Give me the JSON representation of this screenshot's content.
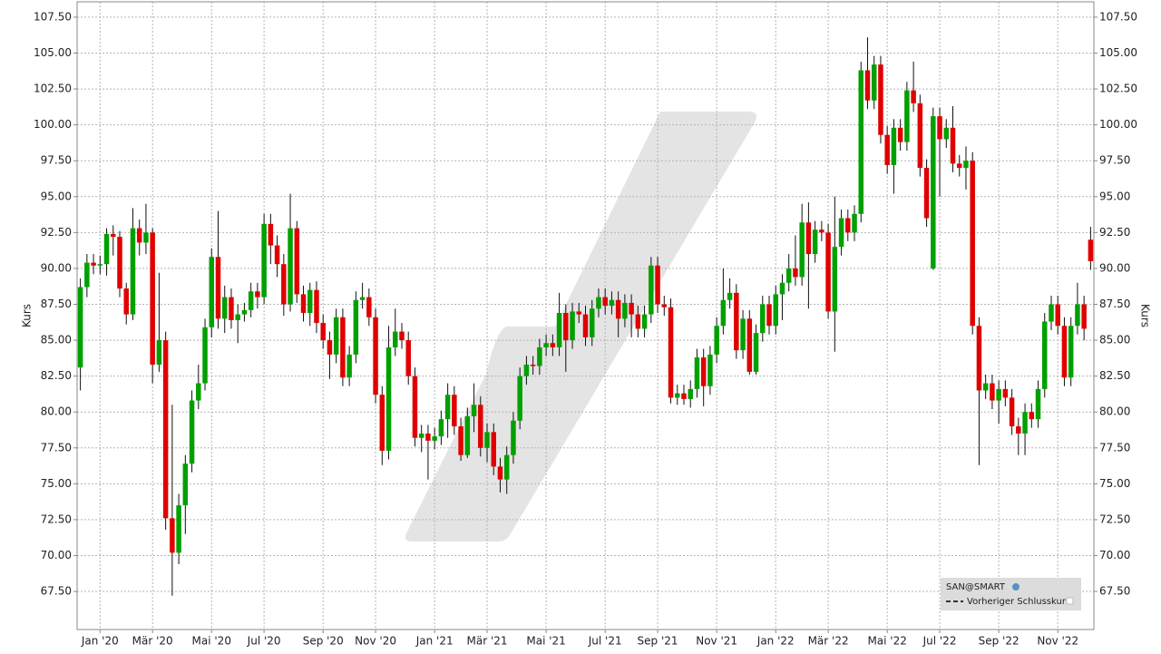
{
  "chart_data": {
    "type": "candlestick",
    "y_label": "Kurs",
    "categories": [
      null,
      null,
      null,
      "Jan '20",
      null,
      null,
      null,
      null,
      null,
      null,
      null,
      "Mär '20",
      null,
      null,
      null,
      null,
      null,
      null,
      null,
      null,
      "Mai '20",
      null,
      null,
      null,
      null,
      null,
      null,
      null,
      "Jul '20",
      null,
      null,
      null,
      null,
      null,
      null,
      null,
      null,
      "Sep '20",
      null,
      null,
      null,
      null,
      null,
      null,
      null,
      "Nov '20",
      null,
      null,
      null,
      null,
      null,
      null,
      null,
      null,
      "Jan '21",
      null,
      null,
      null,
      null,
      null,
      null,
      null,
      "Mär '21",
      null,
      null,
      null,
      null,
      null,
      null,
      null,
      null,
      "Mai '21",
      null,
      null,
      null,
      null,
      null,
      null,
      null,
      null,
      "Jul '21",
      null,
      null,
      null,
      null,
      null,
      null,
      null,
      "Sep '21",
      null,
      null,
      null,
      null,
      null,
      null,
      null,
      null,
      "Nov '21",
      null,
      null,
      null,
      null,
      null,
      null,
      null,
      null,
      "Jan '22",
      null,
      null,
      null,
      null,
      null,
      null,
      null,
      "Mär '22",
      null,
      null,
      null,
      null,
      null,
      null,
      null,
      null,
      "Mai '22",
      null,
      null,
      null,
      null,
      null,
      null,
      null,
      "Jul '22",
      null,
      null,
      null,
      null,
      null,
      null,
      null,
      null,
      "Sep '22",
      null,
      null,
      null,
      null,
      null,
      null,
      null,
      null,
      "Nov '22",
      null,
      null,
      null,
      null,
      null
    ],
    "series": [
      {
        "name": "SAN@SMART",
        "up_color": "#00a000",
        "down_color": "#e00000",
        "open": [
          83.1,
          88.7,
          90.4,
          90.2,
          90.3,
          92.4,
          92.2,
          88.6,
          86.8,
          92.8,
          91.8,
          92.5,
          83.3,
          85.0,
          72.6,
          70.2,
          73.5,
          76.4,
          80.8,
          82.0,
          85.9,
          90.8,
          86.5,
          88.0,
          86.4,
          86.8,
          87.1,
          88.4,
          88.0,
          93.1,
          91.6,
          90.3,
          87.5,
          92.8,
          88.2,
          86.9,
          88.5,
          86.2,
          85.0,
          84.0,
          86.6,
          82.4,
          84.0,
          87.8,
          88.0,
          86.6,
          81.2,
          77.3,
          84.5,
          85.6,
          85.0,
          82.5,
          78.2,
          78.5,
          78.0,
          78.3,
          79.5,
          81.2,
          79.0,
          77.0,
          79.7,
          80.5,
          77.5,
          78.6,
          76.2,
          75.3,
          77.0,
          79.4,
          82.5,
          83.3,
          83.2,
          84.5,
          84.8,
          84.5,
          86.9,
          85.0,
          87.0,
          86.8,
          85.2,
          87.2,
          88.0,
          87.4,
          87.8,
          86.5,
          87.6,
          86.8,
          85.8,
          86.8,
          90.2,
          87.5,
          87.3,
          81.0,
          81.3,
          80.9,
          81.6,
          83.8,
          81.8,
          84.0,
          86.0,
          87.8,
          88.3,
          84.3,
          86.5,
          82.8,
          85.5,
          87.5,
          86.0,
          88.2,
          89.0,
          90.0,
          89.4,
          93.2,
          91.0,
          92.7,
          92.5,
          87.0,
          91.5,
          93.5,
          92.5,
          93.8,
          103.8,
          101.7,
          104.2,
          99.3,
          97.2,
          99.8,
          98.8,
          102.4,
          101.5,
          97.0,
          90.0,
          100.6,
          99.0,
          99.8,
          97.3,
          97.0,
          97.5,
          86.0,
          81.5,
          82.0,
          80.8,
          81.6,
          81.0,
          79.0,
          78.5,
          80.0,
          79.5,
          81.6,
          86.3,
          87.5,
          86.0,
          82.4,
          86.0,
          87.5,
          92.0
        ],
        "high": [
          89.3,
          91.0,
          91.0,
          90.9,
          92.8,
          93.0,
          92.6,
          89.0,
          94.2,
          93.4,
          94.5,
          92.8,
          89.7,
          85.6,
          80.5,
          74.3,
          77.0,
          81.5,
          83.3,
          86.5,
          91.4,
          94.0,
          88.8,
          88.6,
          87.5,
          87.6,
          89.0,
          89.0,
          93.8,
          93.8,
          92.3,
          91.0,
          95.2,
          93.3,
          88.8,
          89.0,
          89.1,
          86.8,
          85.6,
          87.2,
          87.2,
          84.6,
          88.4,
          89.0,
          88.6,
          87.2,
          81.8,
          86.0,
          87.2,
          86.2,
          85.6,
          83.1,
          79.1,
          79.1,
          78.9,
          80.1,
          82.0,
          81.8,
          79.6,
          80.3,
          82.0,
          81.1,
          79.2,
          79.2,
          76.8,
          77.6,
          80.0,
          83.1,
          83.9,
          83.9,
          85.1,
          85.4,
          85.4,
          88.3,
          87.5,
          87.6,
          87.6,
          87.4,
          87.8,
          88.6,
          88.6,
          88.4,
          88.4,
          88.2,
          88.2,
          87.4,
          87.4,
          90.8,
          90.8,
          88.1,
          87.9,
          81.9,
          81.9,
          82.2,
          84.4,
          84.4,
          84.6,
          86.6,
          90.0,
          89.3,
          88.9,
          87.1,
          87.1,
          86.1,
          88.1,
          88.1,
          88.8,
          89.6,
          91.0,
          92.3,
          94.5,
          94.6,
          93.3,
          93.3,
          93.1,
          95.0,
          94.1,
          94.1,
          94.4,
          104.4,
          106.1,
          104.8,
          104.8,
          99.9,
          100.4,
          100.4,
          103.0,
          104.4,
          102.1,
          97.6,
          101.2,
          101.2,
          100.4,
          101.3,
          97.9,
          98.5,
          98.1,
          86.6,
          82.6,
          82.6,
          82.2,
          82.2,
          81.6,
          79.6,
          80.6,
          80.6,
          82.2,
          86.9,
          88.1,
          88.1,
          86.6,
          86.6,
          89.0,
          88.1,
          92.9
        ],
        "low": [
          81.5,
          88.0,
          89.6,
          89.6,
          89.5,
          90.9,
          88.0,
          86.1,
          86.4,
          90.9,
          91.0,
          82.0,
          82.8,
          71.8,
          67.2,
          69.4,
          71.5,
          75.8,
          80.2,
          81.5,
          85.2,
          85.8,
          85.5,
          85.8,
          84.8,
          86.3,
          86.6,
          87.2,
          87.5,
          90.3,
          89.4,
          86.7,
          87.0,
          87.6,
          86.3,
          86.0,
          85.5,
          84.4,
          82.3,
          83.4,
          81.8,
          81.8,
          83.4,
          87.2,
          86.0,
          80.6,
          76.3,
          76.7,
          83.9,
          84.4,
          81.9,
          77.6,
          77.2,
          75.3,
          77.4,
          77.7,
          78.2,
          78.4,
          76.6,
          76.8,
          78.6,
          76.9,
          76.5,
          75.6,
          74.4,
          74.3,
          76.4,
          78.8,
          81.9,
          82.6,
          82.6,
          83.9,
          83.9,
          83.9,
          82.8,
          84.4,
          86.2,
          84.6,
          84.6,
          86.6,
          86.8,
          86.8,
          85.2,
          85.9,
          85.2,
          85.2,
          85.2,
          86.2,
          86.9,
          86.7,
          80.6,
          80.5,
          80.5,
          80.3,
          81.0,
          80.4,
          81.2,
          83.4,
          85.4,
          87.2,
          83.7,
          83.7,
          82.6,
          82.6,
          84.9,
          85.4,
          85.4,
          86.4,
          88.4,
          88.8,
          88.8,
          87.2,
          90.4,
          91.9,
          86.5,
          84.2,
          90.9,
          91.9,
          91.9,
          93.2,
          101.1,
          101.1,
          98.7,
          96.6,
          95.2,
          98.2,
          98.2,
          100.9,
          96.4,
          92.9,
          89.9,
          95.0,
          98.4,
          96.7,
          96.4,
          95.5,
          85.4,
          76.3,
          80.9,
          80.2,
          79.2,
          80.4,
          78.4,
          77.0,
          77.0,
          78.9,
          78.9,
          81.0,
          85.7,
          85.4,
          81.8,
          81.8,
          85.4,
          85.0,
          89.9
        ],
        "close": [
          88.7,
          90.4,
          90.2,
          90.3,
          92.4,
          92.2,
          88.6,
          86.8,
          92.8,
          91.8,
          92.5,
          83.3,
          85.0,
          72.6,
          70.2,
          73.5,
          76.4,
          80.8,
          82.0,
          85.9,
          90.8,
          86.5,
          88.0,
          86.4,
          86.8,
          87.1,
          88.4,
          88.0,
          93.1,
          91.6,
          90.3,
          87.5,
          92.8,
          88.2,
          86.9,
          88.5,
          86.2,
          85.0,
          84.0,
          86.6,
          82.4,
          84.0,
          87.8,
          88.0,
          86.6,
          81.2,
          77.3,
          84.5,
          85.6,
          85.0,
          82.5,
          78.2,
          78.5,
          78.0,
          78.3,
          79.5,
          81.2,
          79.0,
          77.0,
          79.7,
          80.5,
          77.5,
          78.6,
          76.2,
          75.3,
          77.0,
          79.4,
          82.5,
          83.3,
          83.2,
          84.5,
          84.8,
          84.5,
          86.9,
          85.0,
          87.0,
          86.8,
          85.2,
          87.2,
          88.0,
          87.4,
          87.8,
          86.5,
          87.6,
          86.8,
          85.8,
          86.8,
          90.2,
          87.5,
          87.3,
          81.0,
          81.3,
          80.9,
          81.6,
          83.8,
          81.8,
          84.0,
          86.0,
          87.8,
          88.3,
          84.3,
          86.5,
          82.8,
          85.5,
          87.5,
          86.0,
          88.2,
          89.0,
          90.0,
          89.4,
          93.2,
          91.0,
          92.7,
          92.5,
          87.0,
          91.5,
          93.5,
          92.5,
          93.8,
          103.8,
          101.7,
          104.2,
          99.3,
          97.2,
          99.8,
          98.8,
          102.4,
          101.5,
          97.0,
          93.5,
          100.6,
          99.0,
          99.8,
          97.3,
          97.0,
          97.5,
          86.0,
          81.5,
          82.0,
          80.8,
          81.6,
          81.0,
          79.0,
          78.5,
          80.0,
          79.5,
          81.6,
          86.3,
          87.5,
          86.0,
          82.4,
          86.0,
          87.5,
          85.8,
          90.5
        ]
      }
    ],
    "legend_extra": "Vorheriger Schlusskurs",
    "legend": "lower right",
    "ylim": [
      64.85,
      108.57
    ],
    "yticks": [
      {
        "value": 67.5,
        "label": "67.50"
      },
      {
        "value": 70,
        "label": "70.00"
      },
      {
        "value": 72.5,
        "label": "72.50"
      },
      {
        "value": 75,
        "label": "75.00"
      },
      {
        "value": 77.5,
        "label": "77.50"
      },
      {
        "value": 80,
        "label": "80.00"
      },
      {
        "value": 82.5,
        "label": "82.50"
      },
      {
        "value": 85,
        "label": "85.00"
      },
      {
        "value": 87.5,
        "label": "87.50"
      },
      {
        "value": 90,
        "label": "90.00"
      },
      {
        "value": 92.5,
        "label": "92.50"
      },
      {
        "value": 95,
        "label": "95.00"
      },
      {
        "value": 97.5,
        "label": "97.50"
      },
      {
        "value": 100,
        "label": "100.00"
      },
      {
        "value": 102.5,
        "label": "102.50"
      },
      {
        "value": 105,
        "label": "105.00"
      },
      {
        "value": 107.5,
        "label": "107.50"
      }
    ],
    "grid": true
  }
}
